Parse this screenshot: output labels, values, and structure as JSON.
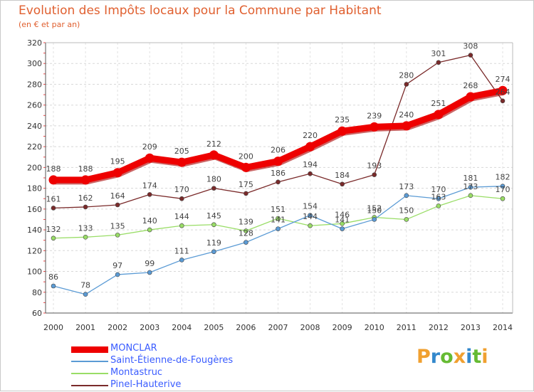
{
  "chart_data": {
    "type": "line",
    "title": "Evolution des Impôts locaux pour la Commune par Habitant",
    "subtitle": "(en € et par an)",
    "xlabel": "",
    "ylabel": "",
    "x": [
      "2000",
      "2001",
      "2002",
      "2003",
      "2004",
      "2005",
      "2006",
      "2007",
      "2008",
      "2009",
      "2010",
      "2011",
      "2012",
      "2013",
      "2014"
    ],
    "ylim": [
      60,
      320
    ],
    "yticks": [
      60,
      80,
      100,
      120,
      140,
      160,
      180,
      200,
      220,
      240,
      260,
      280,
      300,
      320
    ],
    "grid": true,
    "legend_position": "bottom-left",
    "series": [
      {
        "name": "MONCLAR",
        "color": "#ee0000",
        "values": [
          188,
          188,
          195,
          209,
          205,
          212,
          200,
          206,
          220,
          235,
          239,
          240,
          251,
          268,
          274
        ]
      },
      {
        "name": "Saint-Étienne-de-Fougères",
        "color": "#5b9bd5",
        "values": [
          86,
          78,
          97,
          99,
          111,
          119,
          128,
          141,
          154,
          141,
          150,
          173,
          170,
          181,
          182
        ]
      },
      {
        "name": "Montastruc",
        "color": "#99dd66",
        "values": [
          132,
          133,
          135,
          140,
          144,
          145,
          139,
          151,
          144,
          146,
          152,
          150,
          163,
          173,
          170
        ]
      },
      {
        "name": "Pinel-Hauterive",
        "color": "#7a2a2a",
        "values": [
          161,
          162,
          164,
          174,
          170,
          180,
          175,
          186,
          194,
          184,
          193,
          280,
          301,
          308,
          264
        ]
      }
    ]
  },
  "logo": {
    "letters": [
      "P",
      "r",
      "o",
      "x",
      "i",
      "t",
      "i"
    ],
    "colors": [
      "#f0a030",
      "#3388cc",
      "#66bb33",
      "#f0a030",
      "#3388cc",
      "#66bb33",
      "#f0a030"
    ]
  }
}
